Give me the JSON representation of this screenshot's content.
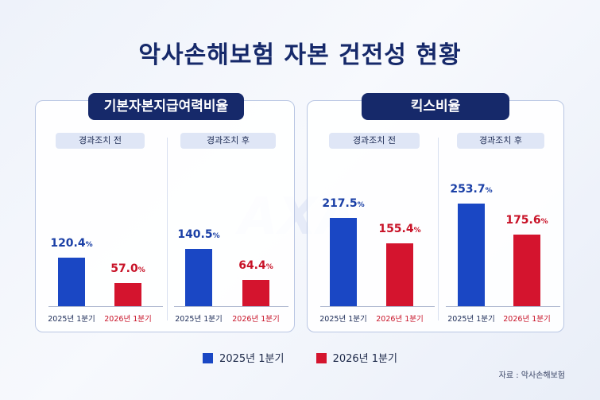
{
  "title": "악사손해보험 자본 건전성 현황",
  "watermark": "AXA",
  "panels": [
    {
      "header": "기본자본지급여력비율",
      "groups": [
        {
          "label": "경과조치 전",
          "values": [
            120.4,
            57.0
          ],
          "value_labels": [
            "120.4",
            "57.0"
          ]
        },
        {
          "label": "경과조치 후",
          "values": [
            140.5,
            64.4
          ],
          "value_labels": [
            "140.5",
            "64.4"
          ]
        }
      ]
    },
    {
      "header": "킥스비율",
      "groups": [
        {
          "label": "경과조치 전",
          "values": [
            217.5,
            155.4
          ],
          "value_labels": [
            "217.5",
            "155.4"
          ]
        },
        {
          "label": "경과조치 후",
          "values": [
            253.7,
            175.6
          ],
          "value_labels": [
            "253.7",
            "175.6"
          ]
        }
      ]
    }
  ],
  "unit": "%",
  "categories": [
    "2025년 1분기",
    "2026년 1분기"
  ],
  "legend": [
    "2025년 1분기",
    "2026년 1분기"
  ],
  "source": "자료 : 악사손해보험",
  "colors": {
    "s2025": "#1a47c4",
    "s2026": "#d4142e",
    "header": "#16296a"
  },
  "chart_data": [
    {
      "type": "bar",
      "title": "기본자본지급여력비율",
      "categories": [
        "경과조치 전",
        "경과조치 후"
      ],
      "series": [
        {
          "name": "2025년 1분기",
          "values": [
            120.4,
            140.5
          ]
        },
        {
          "name": "2026년 1분기",
          "values": [
            57.0,
            64.4
          ]
        }
      ],
      "unit": "%",
      "legend": "bottom"
    },
    {
      "type": "bar",
      "title": "킥스비율",
      "categories": [
        "경과조치 전",
        "경과조치 후"
      ],
      "series": [
        {
          "name": "2025년 1분기",
          "values": [
            217.5,
            253.7
          ]
        },
        {
          "name": "2026년 1분기",
          "values": [
            155.4,
            175.6
          ]
        }
      ],
      "unit": "%",
      "legend": "bottom"
    }
  ]
}
